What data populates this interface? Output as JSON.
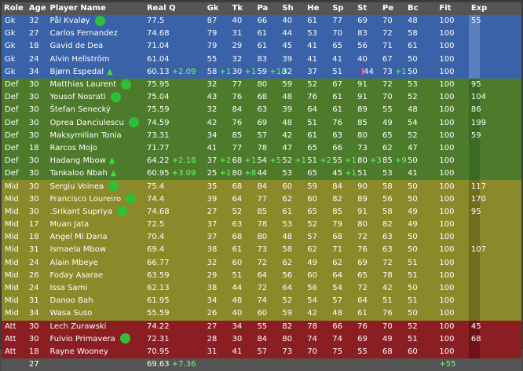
{
  "headers": [
    "Role",
    "Age",
    "Player Name",
    "Real Q",
    "Gk",
    "Tk",
    "Pa",
    "Sh",
    "He",
    "Sp",
    "St",
    "Pe",
    "Bc",
    "Fit",
    "Exp"
  ],
  "players": [
    {
      "role": "Gk",
      "age": "32",
      "name": "Pål Kvaløy",
      "q": "77.5",
      "gk": "87",
      "tk": "40",
      "pa": "66",
      "sh": "40",
      "he": "61",
      "sp": "77",
      "st": "69",
      "pe": "70",
      "bc": "48",
      "fit": "100",
      "exp": "55",
      "dot": true,
      "tri": false
    },
    {
      "role": "Gk",
      "age": "27",
      "name": "Carlos Fernandez",
      "q": "74.68",
      "gk": "79",
      "tk": "31",
      "pa": "61",
      "sh": "44",
      "he": "53",
      "sp": "70",
      "st": "83",
      "pe": "72",
      "bc": "58",
      "fit": "100",
      "exp": "",
      "dot": false,
      "tri": false
    },
    {
      "role": "Gk",
      "age": "18",
      "name": "Gavid de Dea",
      "q": "71.04",
      "gk": "79",
      "tk": "29",
      "pa": "61",
      "sh": "45",
      "he": "41",
      "sp": "65",
      "st": "56",
      "pe": "71",
      "bc": "61",
      "fit": "100",
      "exp": "",
      "dot": false,
      "tri": false
    },
    {
      "role": "Gk",
      "age": "24",
      "name": "Alvin Hellström",
      "q": "61.04",
      "gk": "55",
      "tk": "32",
      "pa": "83",
      "sh": "39",
      "he": "41",
      "sp": "41",
      "st": "40",
      "pe": "67",
      "bc": "50",
      "fit": "100",
      "exp": "",
      "dot": false,
      "tri": false
    },
    {
      "role": "Gk",
      "age": "34",
      "name": "Bjørn Espedal",
      "q": "60.13",
      "qd": "+2.09",
      "gk": "58",
      "gkd": "+1",
      "tk": "30",
      "tkd": "+1",
      "pa": "59",
      "pad": "+18",
      "sh": "32",
      "he": "37",
      "sp": "51",
      "st": "44",
      "pe": "73",
      "ped": "+1",
      "bc": "50",
      "fit": "100",
      "exp": "",
      "dot": false,
      "tri": true,
      "pink": true
    },
    {
      "role": "Def",
      "age": "30",
      "name": "Matthias Laurent",
      "q": "75.95",
      "gk": "32",
      "tk": "77",
      "pa": "80",
      "sh": "59",
      "he": "52",
      "sp": "67",
      "st": "91",
      "pe": "72",
      "bc": "53",
      "fit": "100",
      "exp": "95",
      "dot": true,
      "tri": false
    },
    {
      "role": "Def",
      "age": "30",
      "name": "Yousof Nosrati",
      "q": "75.04",
      "gk": "43",
      "tk": "76",
      "pa": "68",
      "sh": "48",
      "he": "76",
      "sp": "61",
      "st": "91",
      "pe": "70",
      "bc": "52",
      "fit": "100",
      "exp": "104",
      "dot": true,
      "tri": false
    },
    {
      "role": "Def",
      "age": "30",
      "name": "Štefan Senecký",
      "q": "75.59",
      "gk": "32",
      "tk": "84",
      "pa": "63",
      "sh": "39",
      "he": "64",
      "sp": "61",
      "st": "89",
      "pe": "55",
      "bc": "48",
      "fit": "100",
      "exp": "86",
      "dot": false,
      "tri": false
    },
    {
      "role": "Def",
      "age": "30",
      "name": "Oprea Danciulescu",
      "q": "74.59",
      "gk": "42",
      "tk": "76",
      "pa": "69",
      "sh": "48",
      "he": "51",
      "sp": "76",
      "st": "85",
      "pe": "49",
      "bc": "54",
      "fit": "100",
      "exp": "199",
      "dot": true,
      "tri": false
    },
    {
      "role": "Def",
      "age": "30",
      "name": "Maksymilian Tonia",
      "q": "73.31",
      "gk": "34",
      "tk": "85",
      "pa": "57",
      "sh": "42",
      "he": "61",
      "sp": "63",
      "st": "80",
      "pe": "65",
      "bc": "52",
      "fit": "100",
      "exp": "59",
      "dot": false,
      "tri": false
    },
    {
      "role": "Def",
      "age": "18",
      "name": "Rarcos Mojo",
      "q": "71.77",
      "gk": "41",
      "tk": "77",
      "pa": "78",
      "sh": "47",
      "he": "65",
      "sp": "66",
      "st": "73",
      "pe": "62",
      "bc": "47",
      "fit": "100",
      "exp": "",
      "dot": false,
      "tri": false
    },
    {
      "role": "Def",
      "age": "30",
      "name": "Hadang Mbow",
      "q": "64.22",
      "qd": "+2.18",
      "gk": "37",
      "gkd": "+2",
      "tk": "68",
      "tkd": "+1",
      "pa": "54",
      "pad": "+5",
      "sh": "52",
      "shd": "+1",
      "he": "51",
      "hed": "+2",
      "sp": "55",
      "spd": "+1",
      "st": "80",
      "std": "+3",
      "pe": "85",
      "ped": "+9",
      "bc": "50",
      "fit": "100",
      "exp": "",
      "dot": false,
      "tri": true
    },
    {
      "role": "Def",
      "age": "30",
      "name": "Tankaloo Nbah",
      "q": "60.95",
      "qd": "+3.09",
      "gk": "25",
      "gkd": "+1",
      "tk": "80",
      "tkd": "+8",
      "pa": "44",
      "sh": "53",
      "he": "65",
      "sp": "45",
      "spd": "+1",
      "st": "51",
      "pe": "53",
      "bc": "41",
      "fit": "100",
      "exp": "",
      "dot": false,
      "tri": true
    },
    {
      "role": "Mid",
      "age": "30",
      "name": "Sergiu Voinea",
      "q": "75.4",
      "gk": "35",
      "tk": "68",
      "pa": "84",
      "sh": "60",
      "he": "59",
      "sp": "84",
      "st": "90",
      "pe": "58",
      "bc": "50",
      "fit": "100",
      "exp": "117",
      "dot": true,
      "tri": false
    },
    {
      "role": "Mid",
      "age": "30",
      "name": "Francisco Loureiro",
      "q": "74.4",
      "gk": "39",
      "tk": "64",
      "pa": "77",
      "sh": "62",
      "he": "60",
      "sp": "82",
      "st": "89",
      "pe": "56",
      "bc": "50",
      "fit": "100",
      "exp": "170",
      "dot": true,
      "tri": false
    },
    {
      "role": "Mid",
      "age": "30",
      "name": ".Srikant Supriya",
      "q": "74.68",
      "gk": "27",
      "tk": "52",
      "pa": "85",
      "sh": "61",
      "he": "65",
      "sp": "85",
      "st": "91",
      "pe": "58",
      "bc": "49",
      "fit": "100",
      "exp": "95",
      "dot": true,
      "tri": false
    },
    {
      "role": "Mid",
      "age": "17",
      "name": "Muan Jata",
      "q": "72.5",
      "gk": "37",
      "tk": "63",
      "pa": "78",
      "sh": "53",
      "he": "52",
      "sp": "79",
      "st": "80",
      "pe": "82",
      "bc": "49",
      "fit": "100",
      "exp": "",
      "dot": false,
      "tri": false
    },
    {
      "role": "Mid",
      "age": "18",
      "name": "Angel Mi Daria",
      "q": "70.4",
      "gk": "37",
      "tk": "68",
      "pa": "80",
      "sh": "48",
      "he": "57",
      "sp": "68",
      "st": "72",
      "pe": "63",
      "bc": "50",
      "fit": "100",
      "exp": "",
      "dot": false,
      "tri": false
    },
    {
      "role": "Mid",
      "age": "31",
      "name": "Ismaela Mbow",
      "q": "69.4",
      "gk": "38",
      "tk": "61",
      "pa": "73",
      "sh": "58",
      "he": "62",
      "sp": "71",
      "st": "76",
      "pe": "63",
      "bc": "50",
      "fit": "100",
      "exp": "107",
      "dot": false,
      "tri": false
    },
    {
      "role": "Mid",
      "age": "24",
      "name": "Alain Mbeye",
      "q": "66.77",
      "gk": "32",
      "tk": "60",
      "pa": "72",
      "sh": "62",
      "he": "49",
      "sp": "62",
      "st": "69",
      "pe": "72",
      "bc": "51",
      "fit": "100",
      "exp": "",
      "dot": false,
      "tri": false
    },
    {
      "role": "Mid",
      "age": "26",
      "name": "Foday Asarae",
      "q": "63.59",
      "gk": "29",
      "tk": "51",
      "pa": "64",
      "sh": "56",
      "he": "60",
      "sp": "64",
      "st": "65",
      "pe": "78",
      "bc": "51",
      "fit": "100",
      "exp": "",
      "dot": false,
      "tri": false
    },
    {
      "role": "Mid",
      "age": "24",
      "name": "Issa Sami",
      "q": "62.13",
      "gk": "38",
      "tk": "44",
      "pa": "72",
      "sh": "64",
      "he": "56",
      "sp": "54",
      "st": "72",
      "pe": "42",
      "bc": "50",
      "fit": "100",
      "exp": "",
      "dot": false,
      "tri": false
    },
    {
      "role": "Mid",
      "age": "31",
      "name": "Danoo Bah",
      "q": "61.95",
      "gk": "34",
      "tk": "48",
      "pa": "74",
      "sh": "52",
      "he": "54",
      "sp": "57",
      "st": "64",
      "pe": "51",
      "bc": "51",
      "fit": "100",
      "exp": "",
      "dot": false,
      "tri": false
    },
    {
      "role": "Mid",
      "age": "34",
      "name": "Wasa Suso",
      "q": "55.59",
      "gk": "26",
      "tk": "40",
      "pa": "60",
      "sh": "59",
      "he": "42",
      "sp": "48",
      "st": "61",
      "pe": "76",
      "bc": "50",
      "fit": "100",
      "exp": "",
      "dot": false,
      "tri": false
    },
    {
      "role": "Att",
      "age": "30",
      "name": "Lech Zurawski",
      "q": "74.22",
      "gk": "27",
      "tk": "34",
      "pa": "55",
      "sh": "82",
      "he": "78",
      "sp": "66",
      "st": "76",
      "pe": "70",
      "bc": "52",
      "fit": "100",
      "exp": "45",
      "dot": false,
      "tri": false
    },
    {
      "role": "Att",
      "age": "30",
      "name": "Fulvio Primavera",
      "q": "72.31",
      "gk": "28",
      "tk": "30",
      "pa": "84",
      "sh": "80",
      "he": "74",
      "sp": "74",
      "st": "69",
      "pe": "49",
      "bc": "51",
      "fit": "100",
      "exp": "68",
      "dot": true,
      "tri": false
    },
    {
      "role": "Att",
      "age": "18",
      "name": "Rayne Wooney",
      "q": "70.95",
      "gk": "31",
      "tk": "41",
      "pa": "57",
      "sh": "73",
      "he": "70",
      "sp": "75",
      "st": "55",
      "pe": "68",
      "bc": "60",
      "fit": "100",
      "exp": "",
      "dot": false,
      "tri": false
    }
  ],
  "total": {
    "age": "27",
    "q": "69.63",
    "qd": "+7.36",
    "fitd": "+55"
  },
  "colors": {
    "gk": "#3a62a8",
    "def": "#4e7a2c",
    "mid": "#8a8a2a",
    "att": "#8a1e22",
    "delta": "#6cff6c",
    "dot": "#2fbf3a"
  }
}
